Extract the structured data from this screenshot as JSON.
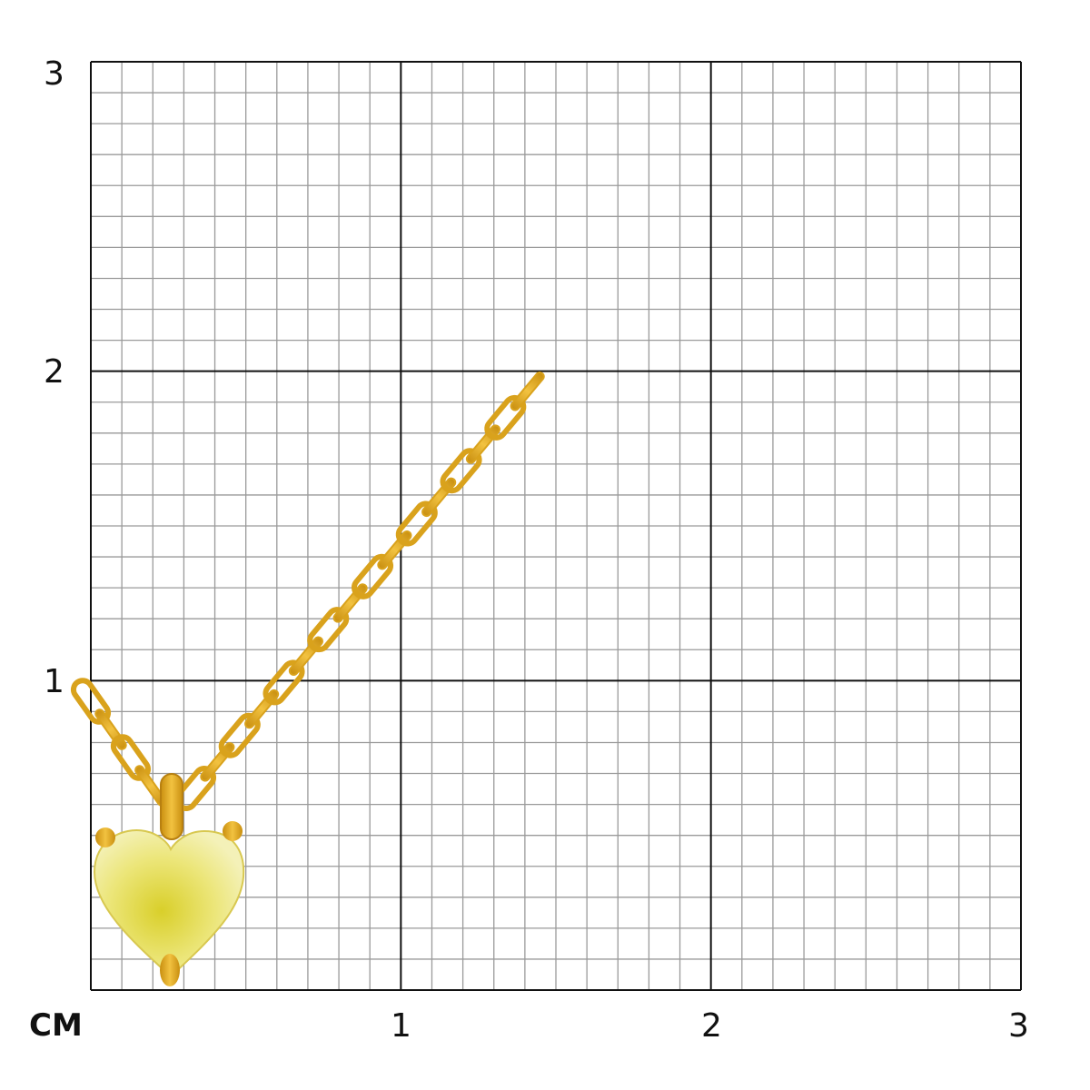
{
  "scale": {
    "unit_label": "CM",
    "x_labels": [
      "1",
      "2",
      "3"
    ],
    "y_labels": [
      "1",
      "2",
      "3"
    ],
    "range_cm": [
      0,
      3
    ],
    "minor_divisions_per_cm": 10
  },
  "colors": {
    "major_grid": "#111111",
    "minor_grid": "#9a9a9a",
    "gold": "#e0a820",
    "gem": "#e8e060"
  },
  "product": {
    "type": "gold chain necklace with heart-shaped yellow gemstone pendant"
  }
}
